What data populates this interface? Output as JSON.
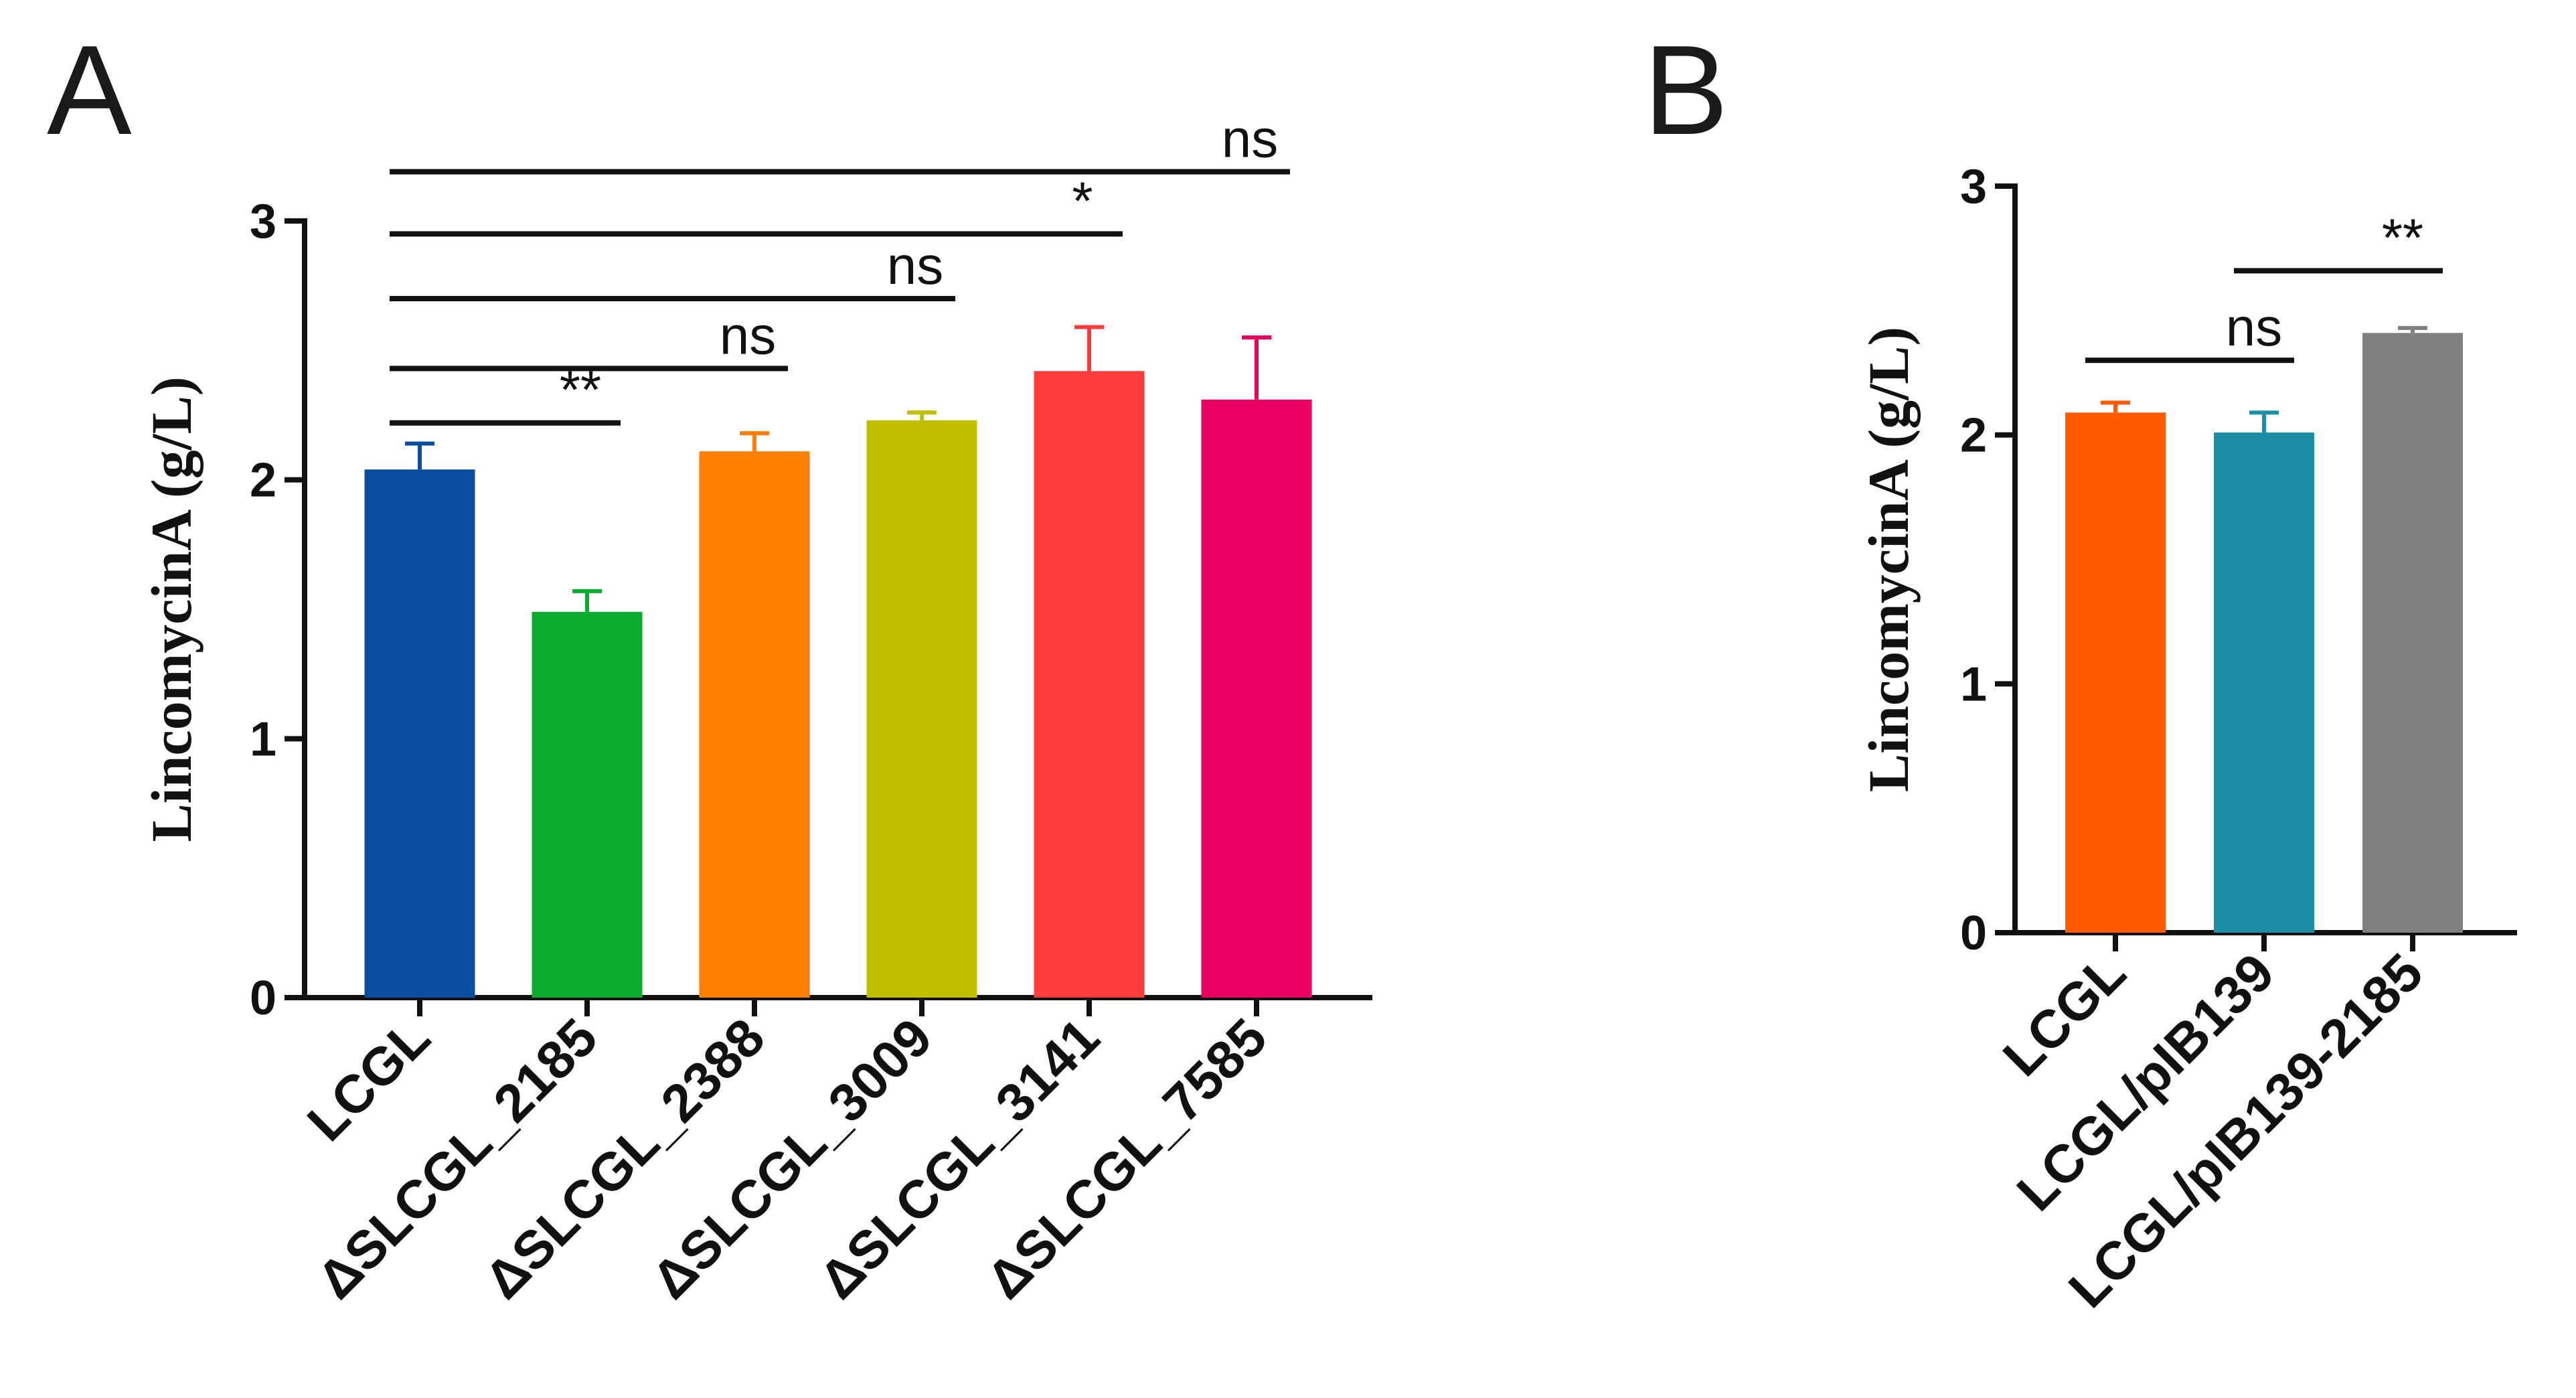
{
  "chart_data": [
    {
      "panel": "A",
      "type": "bar",
      "ylabel": "LincomycinA (g/L)",
      "ylim": [
        0,
        3
      ],
      "yticks": [
        "0",
        "1",
        "2",
        "3"
      ],
      "categories": [
        "LCGL",
        "ΔSLCGL_2185",
        "ΔSLCGL_2388",
        "ΔSLCGL_3009",
        "ΔSLCGL_3141",
        "ΔSLCGL_7585"
      ],
      "values": [
        2.04,
        1.49,
        2.11,
        2.23,
        2.42,
        2.31
      ],
      "errors": [
        0.1,
        0.08,
        0.07,
        0.03,
        0.17,
        0.24
      ],
      "colors": [
        "#0a4ea2",
        "#0aab2e",
        "#ff8000",
        "#bfbf00",
        "#ff3b3b",
        "#e80060"
      ],
      "significance": [
        {
          "from": 0,
          "to": 1,
          "label": "**",
          "y": 2.22
        },
        {
          "from": 0,
          "to": 2,
          "label": "ns",
          "y": 2.43
        },
        {
          "from": 0,
          "to": 3,
          "label": "ns",
          "y": 2.7
        },
        {
          "from": 0,
          "to": 4,
          "label": "*",
          "y": 2.95
        },
        {
          "from": 0,
          "to": 5,
          "label": "ns",
          "y": 3.19
        }
      ]
    },
    {
      "panel": "B",
      "type": "bar",
      "ylabel": "LincomycinA (g/L)",
      "ylim": [
        0,
        3
      ],
      "yticks": [
        "0",
        "1",
        "2",
        "3"
      ],
      "categories": [
        "LCGL",
        "LCGL/pIB139",
        "LCGL/pIB139-2185"
      ],
      "values": [
        2.09,
        2.01,
        2.41
      ],
      "errors": [
        0.04,
        0.08,
        0.02
      ],
      "colors": [
        "#ff5a00",
        "#1b8fa6",
        "#808080"
      ],
      "significance": [
        {
          "from": 0,
          "to": 1,
          "label": "ns",
          "y": 2.3
        },
        {
          "from": 1,
          "to": 2,
          "label": "**",
          "y": 2.66
        }
      ]
    }
  ]
}
